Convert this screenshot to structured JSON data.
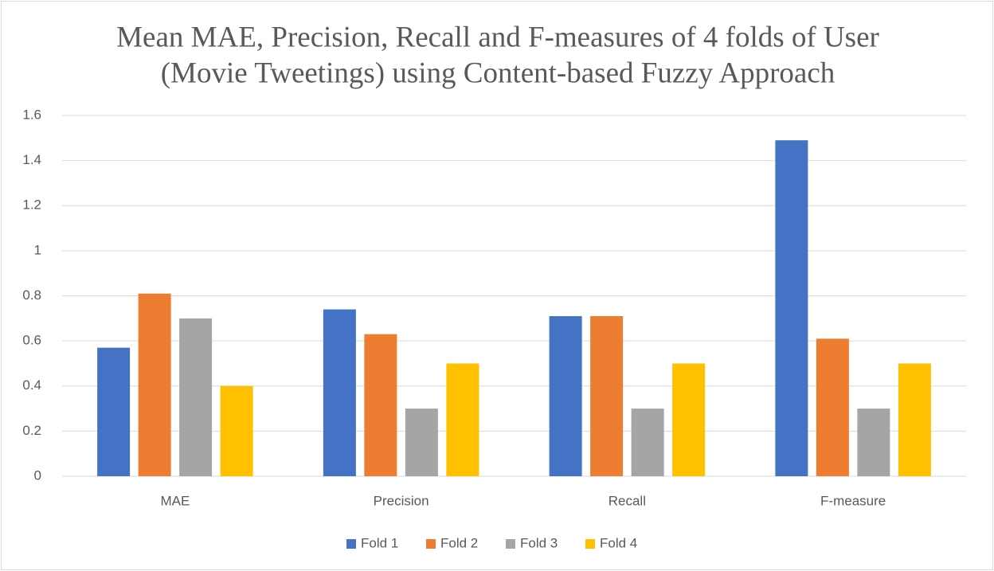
{
  "chart_data": {
    "type": "bar",
    "title": [
      "Mean MAE, Precision, Recall and F-measures of 4 folds of User",
      "(Movie Tweetings) using Content-based Fuzzy Approach"
    ],
    "categories": [
      "MAE",
      "Precision",
      "Recall",
      "F-measure"
    ],
    "series": [
      {
        "name": "Fold 1",
        "color": "#4472c4",
        "values": [
          0.57,
          0.74,
          0.71,
          1.49
        ]
      },
      {
        "name": "Fold 2",
        "color": "#ed7d31",
        "values": [
          0.81,
          0.63,
          0.71,
          0.61
        ]
      },
      {
        "name": "Fold 3",
        "color": "#a5a5a5",
        "values": [
          0.7,
          0.3,
          0.3,
          0.3
        ]
      },
      {
        "name": "Fold 4",
        "color": "#ffc000",
        "values": [
          0.4,
          0.5,
          0.5,
          0.5
        ]
      }
    ],
    "ylim": [
      0,
      1.6
    ],
    "yticks": [
      0,
      0.2,
      0.4,
      0.6,
      0.8,
      1,
      1.2,
      1.4,
      1.6
    ],
    "grid": true,
    "legend": "bottom"
  }
}
